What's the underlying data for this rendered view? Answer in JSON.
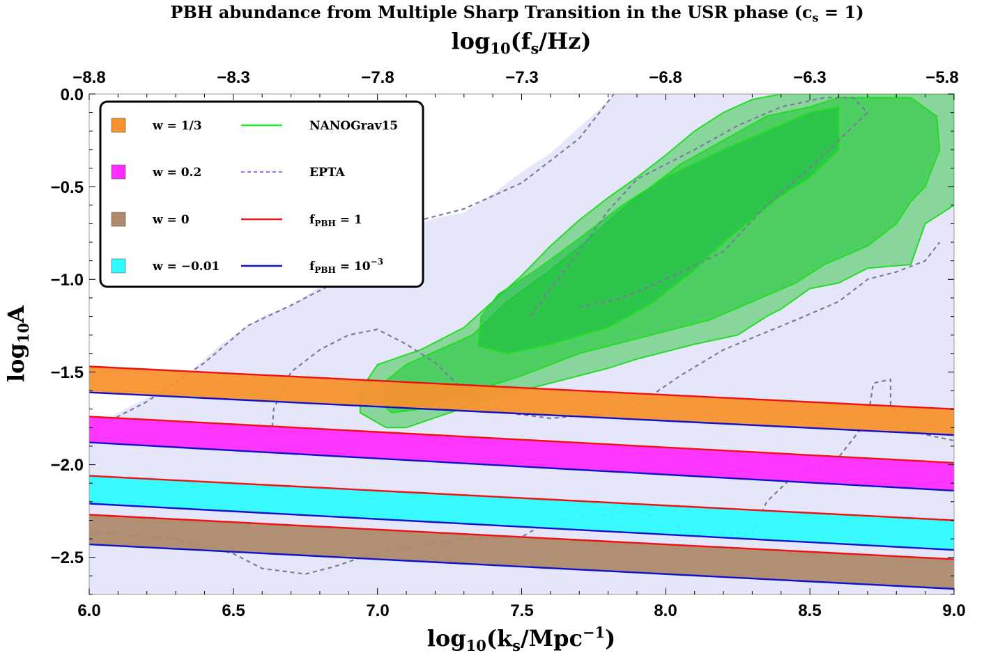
{
  "chart_data": {
    "type": "area",
    "title": "PBH abundance from Multiple Sharp Transition in the USR phase (c",
    "title_sub": "s",
    "title_tail": " = 1)",
    "top_axis_label": "log",
    "top_axis_label_sub": "10",
    "top_axis_label_tail": "(f",
    "top_axis_label_sub2": "s",
    "top_axis_label_end": "/Hz)",
    "xlabel": "log",
    "xlabel_sub": "10",
    "xlabel_tail": "(k",
    "xlabel_sub2": "s",
    "xlabel_mid": "/Mpc",
    "xlabel_sup": "−1",
    "xlabel_end": ")",
    "ylabel": "log",
    "ylabel_sub": "10",
    "ylabel_tail": "A",
    "xlim": [
      6.0,
      9.0
    ],
    "ylim": [
      -2.7,
      0.0
    ],
    "x_ticks": [
      "6.0",
      "6.5",
      "7.0",
      "7.5",
      "8.0",
      "8.5",
      "9.0"
    ],
    "y_ticks": [
      "0.0",
      "−0.5",
      "−1.0",
      "−1.5",
      "−2.0",
      "−2.5"
    ],
    "top_ticks": [
      "−8.8",
      "−8.3",
      "−7.8",
      "−7.3",
      "−6.8",
      "−6.3",
      "−5.8"
    ],
    "legend_position": "top-left",
    "legend": {
      "w13": "w = 1/3",
      "w02": "w = 0.2",
      "w0": "w = 0",
      "wm": "w = −0.01",
      "nano": "NANOGrav15",
      "epta": "EPTA",
      "f1": "f",
      "f1_sub": "PBH",
      "f1_tail": " = 1",
      "f3": "f",
      "f3_sub": "PBH",
      "f3_tail": " = 10",
      "f3_sup": "−3"
    },
    "colors": {
      "w13": "#f7922f",
      "w02": "#ff2cff",
      "w0": "#ae8a6b",
      "wm": "#2ffbff",
      "red": "#ee1111",
      "blue": "#1111cc",
      "nano_line": "#22dd22",
      "epta_line": "#7a7a9a",
      "epta_fill": "#e6e6fa"
    },
    "bands": [
      {
        "name": "w = 1/3",
        "f1": [
          [
            6.0,
            -1.47
          ],
          [
            9.0,
            -1.7
          ]
        ],
        "f3": [
          [
            6.0,
            -1.61
          ],
          [
            9.0,
            -1.84
          ]
        ]
      },
      {
        "name": "w = 0.2",
        "f1": [
          [
            6.0,
            -1.74
          ],
          [
            9.0,
            -1.99
          ]
        ],
        "f3": [
          [
            6.0,
            -1.88
          ],
          [
            9.0,
            -2.14
          ]
        ]
      },
      {
        "name": "w = −0.01",
        "f1": [
          [
            6.0,
            -2.06
          ],
          [
            9.0,
            -2.3
          ]
        ],
        "f3": [
          [
            6.0,
            -2.21
          ],
          [
            9.0,
            -2.46
          ]
        ]
      },
      {
        "name": "w = 0",
        "f1": [
          [
            6.0,
            -2.27
          ],
          [
            9.0,
            -2.51
          ]
        ],
        "f3": [
          [
            6.0,
            -2.43
          ],
          [
            9.0,
            -2.67
          ]
        ]
      }
    ],
    "nanograv_contours": [
      [
        [
          6.94,
          -1.6
        ],
        [
          7.0,
          -1.46
        ],
        [
          7.15,
          -1.38
        ],
        [
          7.3,
          -1.26
        ],
        [
          7.4,
          -1.12
        ],
        [
          7.5,
          -0.98
        ],
        [
          7.6,
          -0.82
        ],
        [
          7.7,
          -0.68
        ],
        [
          7.8,
          -0.56
        ],
        [
          7.9,
          -0.45
        ],
        [
          8.0,
          -0.33
        ],
        [
          8.1,
          -0.2
        ],
        [
          8.2,
          -0.1
        ],
        [
          8.3,
          -0.03
        ],
        [
          8.4,
          0
        ],
        [
          9.0,
          0
        ],
        [
          9.0,
          -0.6
        ],
        [
          8.9,
          -0.7
        ],
        [
          8.85,
          -0.92
        ],
        [
          8.7,
          -0.94
        ],
        [
          8.6,
          -1.02
        ],
        [
          8.5,
          -1.05
        ],
        [
          8.4,
          -1.16
        ],
        [
          8.35,
          -1.2
        ],
        [
          8.25,
          -1.3
        ],
        [
          8.1,
          -1.35
        ],
        [
          7.9,
          -1.43
        ],
        [
          7.8,
          -1.48
        ],
        [
          7.6,
          -1.56
        ],
        [
          7.4,
          -1.64
        ],
        [
          7.25,
          -1.72
        ],
        [
          7.1,
          -1.8
        ],
        [
          7.03,
          -1.8
        ],
        [
          6.94,
          -1.72
        ]
      ],
      [
        [
          7.02,
          -1.56
        ],
        [
          7.1,
          -1.46
        ],
        [
          7.2,
          -1.39
        ],
        [
          7.33,
          -1.3
        ],
        [
          7.45,
          -1.12
        ],
        [
          7.6,
          -0.95
        ],
        [
          7.72,
          -0.8
        ],
        [
          7.85,
          -0.62
        ],
        [
          7.95,
          -0.5
        ],
        [
          8.05,
          -0.38
        ],
        [
          8.2,
          -0.25
        ],
        [
          8.35,
          -0.12
        ],
        [
          8.5,
          -0.07
        ],
        [
          8.6,
          -0.02
        ],
        [
          8.85,
          -0.02
        ],
        [
          8.94,
          -0.12
        ],
        [
          8.95,
          -0.3
        ],
        [
          8.9,
          -0.5
        ],
        [
          8.85,
          -0.58
        ],
        [
          8.8,
          -0.7
        ],
        [
          8.7,
          -0.82
        ],
        [
          8.55,
          -0.92
        ],
        [
          8.45,
          -1.02
        ],
        [
          8.3,
          -1.12
        ],
        [
          8.15,
          -1.22
        ],
        [
          7.95,
          -1.3
        ],
        [
          7.7,
          -1.4
        ],
        [
          7.5,
          -1.52
        ],
        [
          7.3,
          -1.62
        ],
        [
          7.15,
          -1.7
        ],
        [
          7.05,
          -1.72
        ],
        [
          7.02,
          -1.68
        ]
      ],
      [
        [
          7.35,
          -1.36
        ],
        [
          7.36,
          -1.2
        ],
        [
          7.42,
          -1.08
        ],
        [
          7.55,
          -0.95
        ],
        [
          7.7,
          -0.78
        ],
        [
          7.85,
          -0.6
        ],
        [
          8.0,
          -0.45
        ],
        [
          8.2,
          -0.3
        ],
        [
          8.35,
          -0.2
        ],
        [
          8.5,
          -0.1
        ],
        [
          8.6,
          -0.07
        ],
        [
          8.6,
          -0.3
        ],
        [
          8.5,
          -0.45
        ],
        [
          8.4,
          -0.55
        ],
        [
          8.28,
          -0.7
        ],
        [
          8.2,
          -0.8
        ],
        [
          8.1,
          -0.95
        ],
        [
          7.95,
          -1.13
        ],
        [
          7.8,
          -1.26
        ],
        [
          7.6,
          -1.35
        ],
        [
          7.45,
          -1.4
        ]
      ]
    ],
    "epta_contours": [
      [
        [
          6.0,
          -1.8
        ],
        [
          6.1,
          -1.72
        ],
        [
          6.2,
          -1.64
        ],
        [
          6.35,
          -1.5
        ],
        [
          6.45,
          -1.36
        ],
        [
          6.55,
          -1.25
        ],
        [
          6.6,
          -1.2
        ],
        [
          6.7,
          -1.14
        ],
        [
          6.8,
          -1.04
        ],
        [
          6.9,
          -0.93
        ],
        [
          7.05,
          -0.75
        ],
        [
          7.2,
          -0.67
        ],
        [
          7.3,
          -0.64
        ],
        [
          7.4,
          -0.54
        ],
        [
          7.5,
          -0.42
        ],
        [
          7.6,
          -0.32
        ],
        [
          7.7,
          -0.18
        ],
        [
          7.8,
          -0.04
        ],
        [
          7.82,
          0
        ],
        [
          9.0,
          0
        ],
        [
          9.0,
          -2.7
        ],
        [
          6.0,
          -2.7
        ]
      ]
    ],
    "epta_lines": [
      [
        [
          6.0,
          -1.82
        ],
        [
          6.2,
          -1.66
        ],
        [
          6.4,
          -1.45
        ],
        [
          6.55,
          -1.25
        ],
        [
          6.7,
          -1.14
        ],
        [
          6.85,
          -1.02
        ],
        [
          7.0,
          -0.85
        ],
        [
          7.15,
          -0.68
        ],
        [
          7.3,
          -0.62
        ],
        [
          7.5,
          -0.48
        ],
        [
          7.7,
          -0.24
        ],
        [
          7.82,
          0
        ]
      ],
      [
        [
          6.0,
          -2.37
        ],
        [
          6.15,
          -2.38
        ],
        [
          6.3,
          -2.4
        ],
        [
          6.5,
          -2.48
        ],
        [
          6.6,
          -2.56
        ],
        [
          6.75,
          -2.59
        ],
        [
          6.85,
          -2.55
        ],
        [
          7.0,
          -2.47
        ],
        [
          7.3,
          -2.4
        ],
        [
          7.5,
          -2.39
        ],
        [
          7.6,
          -2.3
        ],
        [
          7.9,
          -2.25
        ],
        [
          8.0,
          -2.3
        ],
        [
          8.1,
          -2.37
        ],
        [
          8.3,
          -2.37
        ],
        [
          8.35,
          -2.2
        ],
        [
          8.45,
          -2.05
        ],
        [
          8.6,
          -1.96
        ],
        [
          8.7,
          -1.76
        ],
        [
          8.72,
          -1.56
        ],
        [
          8.78,
          -1.54
        ],
        [
          8.78,
          -1.68
        ],
        [
          8.85,
          -1.82
        ],
        [
          9.0,
          -1.87
        ]
      ],
      [
        [
          6.63,
          -1.92
        ],
        [
          6.64,
          -1.7
        ],
        [
          6.7,
          -1.5
        ],
        [
          6.8,
          -1.38
        ],
        [
          6.9,
          -1.3
        ],
        [
          7.0,
          -1.27
        ],
        [
          7.1,
          -1.35
        ],
        [
          7.2,
          -1.45
        ],
        [
          7.3,
          -1.6
        ],
        [
          7.45,
          -1.72
        ],
        [
          7.6,
          -1.75
        ],
        [
          7.8,
          -1.72
        ],
        [
          7.9,
          -1.68
        ],
        [
          8.05,
          -1.52
        ],
        [
          8.2,
          -1.38
        ],
        [
          8.45,
          -1.22
        ],
        [
          8.6,
          -1.12
        ],
        [
          8.7,
          -1.0
        ],
        [
          8.8,
          -0.96
        ],
        [
          8.9,
          -0.9
        ],
        [
          8.95,
          -0.8
        ]
      ],
      [
        [
          7.53,
          -1.2
        ],
        [
          7.6,
          -1.05
        ],
        [
          7.7,
          -0.85
        ],
        [
          7.8,
          -0.63
        ],
        [
          7.9,
          -0.46
        ],
        [
          8.1,
          -0.3
        ],
        [
          8.25,
          -0.17
        ],
        [
          8.4,
          -0.07
        ],
        [
          8.55,
          -0.02
        ],
        [
          8.65,
          -0.02
        ],
        [
          8.7,
          -0.1
        ],
        [
          8.6,
          -0.25
        ],
        [
          8.5,
          -0.4
        ],
        [
          8.35,
          -0.6
        ],
        [
          8.2,
          -0.85
        ],
        [
          8.0,
          -1.0
        ],
        [
          7.85,
          -1.1
        ],
        [
          7.7,
          -1.15
        ]
      ]
    ]
  }
}
